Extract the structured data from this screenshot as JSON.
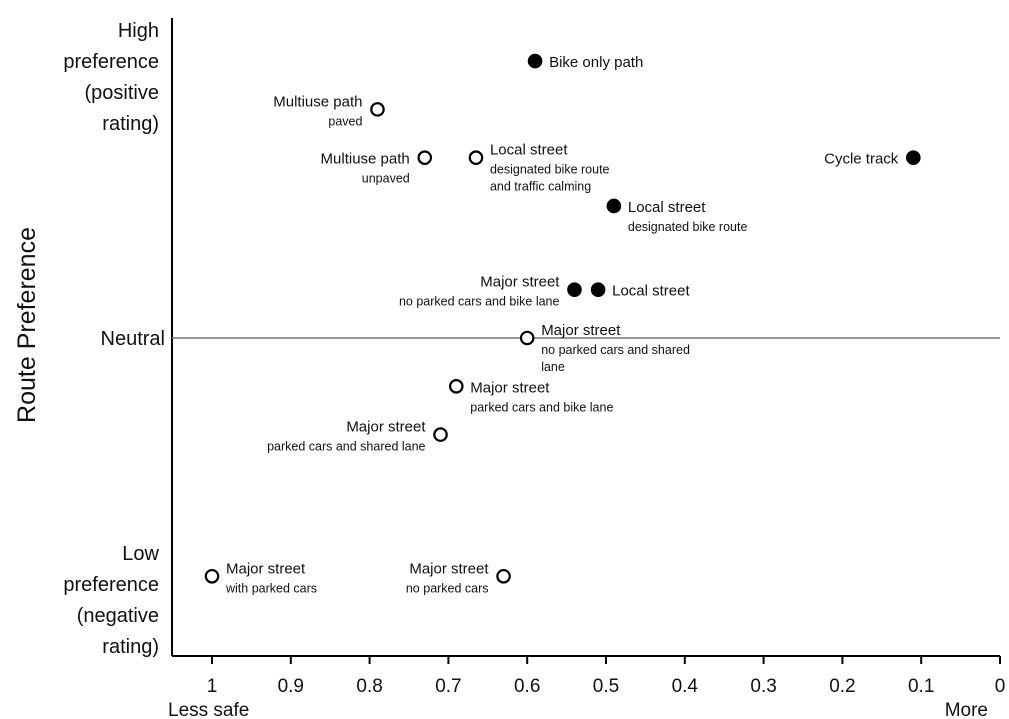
{
  "chart_data": {
    "type": "scatter",
    "y_axis_title": "Route Preference",
    "y_labels": {
      "high": [
        "High",
        "preference",
        "(positive",
        "rating)"
      ],
      "neutral": "Neutral",
      "low": [
        "Low",
        "preference",
        "(negative",
        "rating)"
      ]
    },
    "x_ticks": [
      "1",
      "0.9",
      "0.8",
      "0.7",
      "0.6",
      "0.5",
      "0.4",
      "0.3",
      "0.2",
      "0.1",
      "0"
    ],
    "x_end_labels": {
      "left": "Less safe",
      "right": "More"
    },
    "xlim": [
      1,
      0
    ],
    "ylim": [
      -1,
      1
    ],
    "points": [
      {
        "x": 0.59,
        "y": 0.86,
        "filled": true,
        "main": "Bike only path",
        "sub": [],
        "side": "right"
      },
      {
        "x": 0.79,
        "y": 0.71,
        "filled": false,
        "main": "Multiuse path",
        "sub": [
          "paved"
        ],
        "side": "left-above"
      },
      {
        "x": 0.73,
        "y": 0.56,
        "filled": false,
        "main": "Multiuse path",
        "sub": [
          "unpaved"
        ],
        "side": "left"
      },
      {
        "x": 0.665,
        "y": 0.56,
        "filled": false,
        "main": "Local street",
        "sub": [
          "designated bike route",
          "and traffic calming"
        ],
        "side": "right-above"
      },
      {
        "x": 0.11,
        "y": 0.56,
        "filled": true,
        "main": "Cycle track",
        "sub": [],
        "side": "left"
      },
      {
        "x": 0.49,
        "y": 0.41,
        "filled": true,
        "main": "Local street",
        "sub": [
          "designated bike route"
        ],
        "side": "right"
      },
      {
        "x": 0.54,
        "y": 0.15,
        "filled": true,
        "main": "Major street",
        "sub": [
          "no parked cars and bike lane"
        ],
        "side": "left-above"
      },
      {
        "x": 0.51,
        "y": 0.15,
        "filled": true,
        "main": "Local street",
        "sub": [],
        "side": "right"
      },
      {
        "x": 0.6,
        "y": 0.0,
        "filled": false,
        "main": "Major street",
        "sub": [
          "no parked cars and shared",
          "lane"
        ],
        "side": "right-above"
      },
      {
        "x": 0.69,
        "y": -0.15,
        "filled": false,
        "main": "Major street",
        "sub": [
          "parked cars and bike lane"
        ],
        "side": "right"
      },
      {
        "x": 0.71,
        "y": -0.3,
        "filled": false,
        "main": "Major street",
        "sub": [
          "parked cars and shared lane"
        ],
        "side": "left-above"
      },
      {
        "x": 1.0,
        "y": -0.74,
        "filled": false,
        "main": "Major street",
        "sub": [
          "with parked cars"
        ],
        "side": "right-above"
      },
      {
        "x": 0.63,
        "y": -0.74,
        "filled": false,
        "main": "Major street",
        "sub": [
          "no parked cars"
        ],
        "side": "left-above"
      }
    ]
  }
}
